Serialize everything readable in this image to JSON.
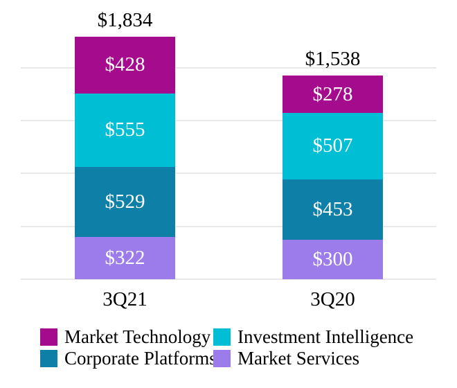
{
  "chart_data": {
    "type": "bar",
    "stacked": true,
    "title": "",
    "xlabel": "",
    "ylabel": "",
    "categories": [
      "3Q21",
      "3Q20"
    ],
    "totals": [
      "$1,834",
      "$1,538"
    ],
    "series": [
      {
        "name": "Market Technology",
        "color": "#A50C8D",
        "values": [
          428,
          278
        ],
        "labels": [
          "$428",
          "$278"
        ]
      },
      {
        "name": "Investment Intelligence",
        "color": "#00BED4",
        "values": [
          555,
          507
        ],
        "labels": [
          "$555",
          "$507"
        ]
      },
      {
        "name": "Corporate Platforms",
        "color": "#0E80A8",
        "values": [
          529,
          453
        ],
        "labels": [
          "$529",
          "$453"
        ]
      },
      {
        "name": "Market Services",
        "color": "#9B7CEA",
        "values": [
          322,
          300
        ],
        "labels": [
          "$322",
          "$300"
        ]
      }
    ],
    "stack_order_top_to_bottom": [
      "Market Technology",
      "Investment Intelligence",
      "Corporate Platforms",
      "Market Services"
    ],
    "gridline_values": [
      0,
      400,
      800,
      1200,
      1600
    ],
    "gridline_interval": 400,
    "ylim": [
      0,
      1834
    ],
    "grid_on": true,
    "grid_color": "#E8E8E8",
    "value_label_color": "#FFFFFF",
    "text_color": "#000000",
    "legend_position": "bottom",
    "legend_columns": 2
  }
}
